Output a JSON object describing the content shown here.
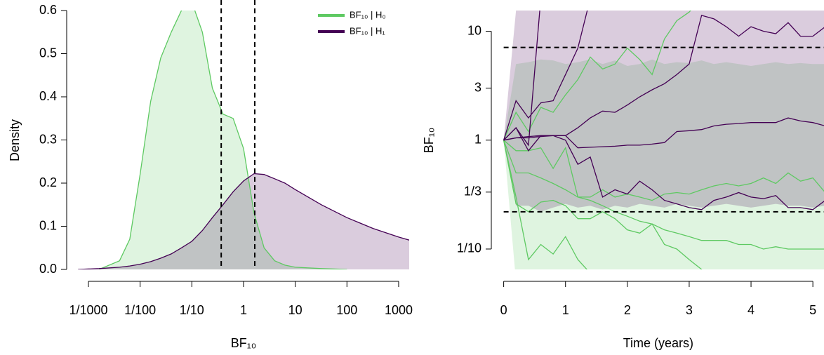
{
  "chart_data": [
    {
      "type": "density",
      "xscale": "log",
      "xlabel": "BF₁₀",
      "ylabel": "Density",
      "legend": "top-right",
      "x": [
        0.00063,
        0.0016,
        0.004,
        0.0063,
        0.01,
        0.016,
        0.025,
        0.04,
        0.063,
        0.1,
        0.16,
        0.25,
        0.4,
        0.63,
        1,
        1.6,
        2.5,
        4,
        6.3,
        10,
        32,
        100,
        320,
        1000,
        1600
      ],
      "series": [
        {
          "name": "BF₁₀ | H₀",
          "color": "#5ec962",
          "values": [
            null,
            0,
            0.02,
            0.07,
            0.22,
            0.39,
            0.49,
            0.55,
            0.6,
            0.62,
            0.55,
            0.42,
            0.36,
            0.35,
            0.28,
            0.13,
            0.05,
            0.02,
            0.01,
            0.005,
            0.002,
            0,
            null,
            null,
            null
          ]
        },
        {
          "name": "BF₁₀ | H₁",
          "color": "#440154",
          "values": [
            0,
            0.002,
            0.005,
            0.008,
            0.012,
            0.018,
            0.026,
            0.036,
            0.05,
            0.065,
            0.09,
            0.12,
            0.15,
            0.18,
            0.205,
            0.222,
            0.22,
            0.21,
            0.2,
            0.185,
            0.15,
            0.12,
            0.095,
            0.075,
            0.068
          ]
        }
      ],
      "xlim": [
        0.00057,
        1600
      ],
      "xticks": [
        {
          "value": 0.001,
          "label": "1/1000"
        },
        {
          "value": 0.01,
          "label": "1/100"
        },
        {
          "value": 0.1,
          "label": "1/10"
        },
        1,
        10,
        100,
        1000
      ],
      "ylim": [
        0,
        0.6
      ],
      "yticks": [
        {
          "value": 0,
          "label": "0.0"
        },
        0.1,
        0.2,
        0.3,
        0.4,
        0.5,
        0.6
      ],
      "vlines": [
        0.37,
        1.65
      ]
    },
    {
      "type": "line",
      "yscale": "log",
      "xlabel": "Time (years)",
      "ylabel": "BF₁₀",
      "x": [
        0,
        0.2,
        0.4,
        0.6,
        0.8,
        1,
        1.2,
        1.4,
        1.6,
        1.8,
        2,
        2.2,
        2.4,
        2.6,
        2.8,
        3,
        3.2,
        3.4,
        3.6,
        3.8,
        4,
        4.2,
        4.4,
        4.6,
        4.8,
        5,
        5.2
      ],
      "bands": [
        {
          "color": "#5ec962",
          "lower": [
            1,
            0.05,
            0.05,
            0.05,
            0.05,
            0.05,
            0.05,
            0.05,
            0.05,
            0.05,
            0.05,
            0.05,
            0.05,
            0.05,
            0.05,
            0.05,
            0.05,
            0.05,
            0.05,
            0.05,
            0.05,
            0.05,
            0.05,
            0.05,
            0.05,
            0.05,
            0.05
          ],
          "upper": [
            1,
            5,
            5.2,
            5.5,
            5.4,
            5,
            5.2,
            5.5,
            5,
            5.4,
            4.8,
            5,
            5.5,
            5,
            5.2,
            5.1,
            5.4,
            5,
            5.2,
            5,
            4.8,
            5,
            5.2,
            5,
            5.1,
            5,
            5
          ]
        },
        {
          "color": "#440154",
          "lower": [
            1,
            0.25,
            0.25,
            0.22,
            0.24,
            0.26,
            0.24,
            0.25,
            0.23,
            0.25,
            0.24,
            0.26,
            0.25,
            0.24,
            0.26,
            0.25,
            0.24,
            0.25,
            0.26,
            0.25,
            0.24,
            0.25,
            0.26,
            0.25,
            0.25,
            0.24,
            0.25
          ],
          "upper": [
            1,
            15.5,
            15.5,
            15.5,
            15.5,
            15.5,
            15.5,
            15.5,
            15.5,
            15.5,
            15.5,
            15.5,
            15.5,
            15.5,
            15.5,
            15.5,
            15.5,
            15.5,
            15.5,
            15.5,
            15.5,
            15.5,
            15.5,
            15.5,
            15.5,
            15.5,
            15.5
          ]
        }
      ],
      "series": [
        {
          "color": "#5ec962",
          "values": [
            1,
            1.8,
            1.2,
            2.0,
            1.8,
            2.6,
            3.6,
            5.8,
            4.5,
            5,
            7,
            5.5,
            4,
            8.5,
            12.5,
            15,
            20,
            null,
            null,
            null,
            null,
            null,
            null,
            null,
            null,
            null,
            null
          ]
        },
        {
          "color": "#5ec962",
          "values": [
            1,
            0.8,
            0.8,
            0.85,
            0.55,
            0.85,
            0.3,
            0.3,
            0.35,
            0.3,
            0.32,
            0.3,
            0.28,
            0.32,
            0.33,
            0.32,
            0.35,
            0.38,
            0.4,
            0.38,
            0.4,
            0.45,
            0.4,
            0.5,
            0.42,
            0.45,
            0.33
          ]
        },
        {
          "color": "#5ec962",
          "values": [
            1,
            0.3,
            0.08,
            0.11,
            0.09,
            0.13,
            0.08,
            0.06,
            null,
            null,
            null,
            null,
            null,
            null,
            null,
            null,
            null,
            null,
            null,
            null,
            null,
            null,
            null,
            null,
            null,
            null,
            null
          ]
        },
        {
          "color": "#5ec962",
          "values": [
            1,
            0.26,
            0.22,
            0.27,
            0.28,
            0.25,
            0.19,
            0.19,
            0.22,
            0.19,
            0.15,
            0.14,
            0.17,
            0.11,
            0.1,
            0.08,
            0.065,
            0.05,
            null,
            null,
            null,
            null,
            null,
            null,
            null,
            null,
            null
          ]
        },
        {
          "color": "#5ec962",
          "values": [
            1,
            0.5,
            0.5,
            0.45,
            0.4,
            0.35,
            0.3,
            0.28,
            0.25,
            0.22,
            0.2,
            0.18,
            0.17,
            0.15,
            0.14,
            0.13,
            0.12,
            0.12,
            0.12,
            0.11,
            0.11,
            0.1,
            0.105,
            0.1,
            0.1,
            0.1,
            0.1
          ]
        },
        {
          "color": "#440154",
          "values": [
            1,
            2.3,
            1.6,
            2.2,
            2.3,
            4,
            7,
            20,
            null,
            null,
            null,
            null,
            null,
            null,
            null,
            null,
            null,
            null,
            null,
            null,
            null,
            null,
            null,
            null,
            null,
            null,
            null
          ]
        },
        {
          "color": "#440154",
          "values": [
            1,
            1.3,
            0.9,
            20,
            null,
            null,
            null,
            null,
            null,
            null,
            null,
            null,
            null,
            null,
            null,
            null,
            null,
            null,
            null,
            null,
            null,
            null,
            null,
            null,
            null,
            null,
            null
          ]
        },
        {
          "color": "#440154",
          "values": [
            1,
            1.05,
            1.08,
            1.1,
            1.1,
            1.1,
            1.3,
            1.6,
            1.85,
            1.8,
            2.1,
            2.5,
            2.9,
            3.3,
            4,
            5,
            14,
            13,
            11,
            9,
            11,
            10,
            9.5,
            12,
            9,
            9,
            11
          ]
        },
        {
          "color": "#440154",
          "values": [
            1,
            1.05,
            1.05,
            1.08,
            1.1,
            1.1,
            0.85,
            0.86,
            0.87,
            0.88,
            0.9,
            0.9,
            0.92,
            0.95,
            1.2,
            1.22,
            1.25,
            1.35,
            1.4,
            1.42,
            1.45,
            1.45,
            1.45,
            1.6,
            1.5,
            1.45,
            1.35
          ]
        },
        {
          "color": "#440154",
          "values": [
            1,
            1.3,
            0.8,
            1.1,
            1.1,
            1.0,
            0.6,
            0.7,
            0.3,
            0.35,
            0.32,
            0.42,
            0.35,
            0.28,
            0.26,
            0.24,
            0.23,
            0.28,
            0.3,
            0.33,
            0.3,
            0.29,
            0.31,
            0.24,
            0.24,
            0.23,
            0.28
          ]
        }
      ],
      "xlim": [
        -0.2,
        5.18
      ],
      "xticks": [
        0,
        1,
        2,
        3,
        4,
        5
      ],
      "ylim": [
        0.065,
        15.5
      ],
      "yticks": [
        {
          "value": 0.1,
          "label": "1/10"
        },
        {
          "value": 0.3333,
          "label": "1/3"
        },
        1,
        3,
        10
      ],
      "hlines": [
        7.1,
        0.22
      ]
    }
  ]
}
